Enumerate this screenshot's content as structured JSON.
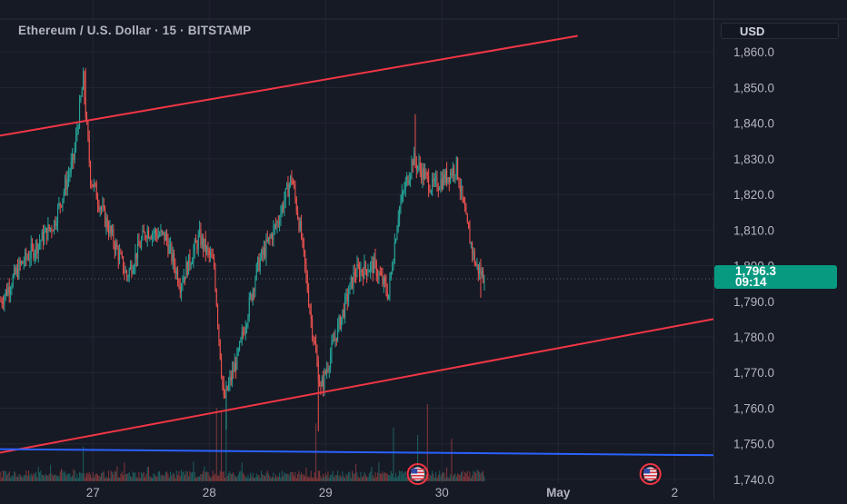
{
  "header": {
    "symbol_title": "Ethereum / U.S. Dollar · 15 · BITSTAMP",
    "currency": "USD"
  },
  "price_label": {
    "price": "1,796.3",
    "countdown": "09:14"
  },
  "colors": {
    "background": "#161a25",
    "grid": "#232632",
    "up": "#26a69a",
    "down": "#ef5350",
    "channel_line": "#f23645",
    "support_line": "#2962ff",
    "price_tag": "#089981"
  },
  "events": {
    "icons": [
      "us-flag-icon",
      "us-flag-icon"
    ],
    "at": [
      "Apr 29 19:00",
      "May 01 19:00"
    ]
  },
  "chart_data": {
    "type": "candlestick",
    "ylim": [
      1737,
      1867
    ],
    "y_ticks": [
      1860,
      1850,
      1840,
      1830,
      1820,
      1810,
      1800,
      1790,
      1780,
      1770,
      1760,
      1750,
      1740
    ],
    "y_tick_labels": [
      "1,860.0",
      "1,850.0",
      "1,840.0",
      "1,830.0",
      "1,820.0",
      "1,810.0",
      "1,800.0",
      "1,790.0",
      "1,780.0",
      "1,770.0",
      "1,760.0",
      "1,750.0",
      "1,740.0"
    ],
    "x_range": [
      "Apr 26 04:50",
      "May 02 08:00"
    ],
    "x_ticks": [
      "Apr 27",
      "Apr 28",
      "Apr 29",
      "Apr 30",
      "May 01",
      "May 02"
    ],
    "x_tick_labels": [
      "27",
      "28",
      "29",
      "30",
      "May",
      "2"
    ],
    "x_grid": [
      "Apr 27",
      "Apr 28",
      "Apr 29",
      "Apr 30",
      "May 01",
      "May 02"
    ],
    "last_price": 1796.3,
    "path": [
      [
        "Apr 26 05:00",
        1790
      ],
      [
        "Apr 26 09:00",
        1800
      ],
      [
        "Apr 26 12:00",
        1805
      ],
      [
        "Apr 26 16:00",
        1812
      ],
      [
        "Apr 26 20:00",
        1830
      ],
      [
        "Apr 26 22:00",
        1852
      ],
      [
        "Apr 26 23:30",
        1825
      ],
      [
        "Apr 27 02:00",
        1815
      ],
      [
        "Apr 27 07:00",
        1797
      ],
      [
        "Apr 27 11:00",
        1810
      ],
      [
        "Apr 27 15:00",
        1808
      ],
      [
        "Apr 27 18:00",
        1795
      ],
      [
        "Apr 27 22:00",
        1808
      ],
      [
        "Apr 28 01:00",
        1800
      ],
      [
        "Apr 28 02:00",
        1780
      ],
      [
        "Apr 28 03:00",
        1762
      ],
      [
        "Apr 28 06:00",
        1775
      ],
      [
        "Apr 28 10:00",
        1800
      ],
      [
        "Apr 28 14:00",
        1812
      ],
      [
        "Apr 28 17:00",
        1825
      ],
      [
        "Apr 28 19:00",
        1808
      ],
      [
        "Apr 28 21:00",
        1785
      ],
      [
        "Apr 28 23:00",
        1765
      ],
      [
        "Apr 29 02:00",
        1780
      ],
      [
        "Apr 29 06:00",
        1798
      ],
      [
        "Apr 29 10:00",
        1800
      ],
      [
        "Apr 29 13:00",
        1792
      ],
      [
        "Apr 29 15:00",
        1815
      ],
      [
        "Apr 29 18:00",
        1830
      ],
      [
        "Apr 29 22:00",
        1822
      ],
      [
        "Apr 30 01:00",
        1825
      ],
      [
        "Apr 30 03:00",
        1828
      ],
      [
        "Apr 30 05:00",
        1812
      ],
      [
        "Apr 30 07:00",
        1800
      ],
      [
        "Apr 30 08:50",
        1796.3
      ]
    ],
    "extremes": [
      [
        "Apr 26 22:30",
        1855.5
      ],
      [
        "Apr 28 03:30",
        1754
      ],
      [
        "Apr 28 22:30",
        1753.5
      ],
      [
        "Apr 29 18:30",
        1842.5
      ],
      [
        "Apr 30 08:00",
        1791
      ]
    ],
    "channel_upper": [
      [
        "Apr 26 04:50",
        1836.5
      ],
      [
        "May 01 04:00",
        1864.5
      ]
    ],
    "channel_lower": [
      [
        "Apr 26 04:50",
        1747.5
      ],
      [
        "May 02 08:00",
        1785
      ]
    ],
    "support_line": [
      [
        "Apr 26 04:50",
        1748.5
      ],
      [
        "May 02 08:00",
        1746.8
      ]
    ],
    "volume_spikes": [
      [
        "Apr 26 22:00",
        0.45
      ],
      [
        "Apr 28 01:30",
        0.95
      ],
      [
        "Apr 28 02:30",
        0.9
      ],
      [
        "Apr 28 03:30",
        0.85
      ],
      [
        "Apr 28 22:00",
        0.75
      ],
      [
        "Apr 29 14:00",
        0.7
      ],
      [
        "Apr 29 19:00",
        0.6
      ],
      [
        "Apr 29 21:00",
        1.0
      ],
      [
        "Apr 30 02:00",
        0.55
      ]
    ]
  }
}
